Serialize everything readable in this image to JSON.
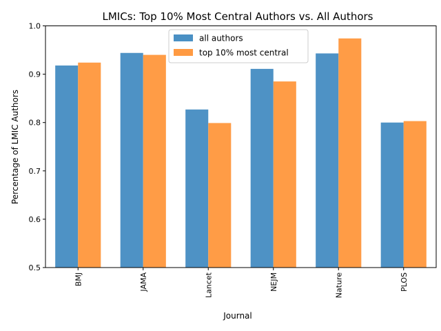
{
  "chart_data": {
    "type": "bar",
    "title": "LMICs: Top 10% Most Central Authors vs. All Authors",
    "xlabel": "Journal",
    "ylabel": "Percentage of LMIC Authors",
    "categories": [
      "BMJ",
      "JAMA",
      "Lancet",
      "NEJM",
      "Nature",
      "PLOS"
    ],
    "series": [
      {
        "name": "all authors",
        "color": "#4a90c4",
        "values": [
          0.918,
          0.944,
          0.827,
          0.911,
          0.943,
          0.8
        ]
      },
      {
        "name": "top 10% most central",
        "color": "#ff9a42",
        "values": [
          0.924,
          0.94,
          0.799,
          0.885,
          0.974,
          0.803
        ]
      }
    ],
    "ylim": [
      0.5,
      1.0
    ],
    "yticks": [
      "0.5",
      "0.6",
      "0.7",
      "0.8",
      "0.9",
      "1.0"
    ],
    "legend_position": "top-center",
    "grid": false
  }
}
